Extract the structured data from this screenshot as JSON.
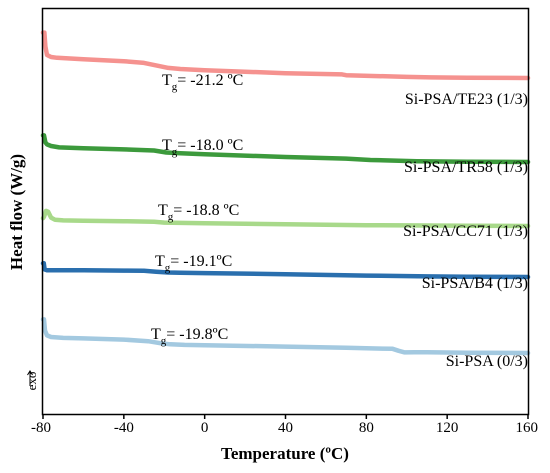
{
  "chart_data": {
    "type": "line",
    "xlabel": "Temperature (ºC)",
    "ylabel": "Heat flow (W/g)",
    "exo_label": "exo",
    "xlim": [
      -80,
      160
    ],
    "xticks": [
      -80,
      -40,
      0,
      40,
      80,
      120,
      160
    ],
    "xtick_labels": [
      "-80",
      "-40",
      "0",
      "40",
      "80",
      "120",
      "160"
    ],
    "grid": false,
    "y_ticks_shown": false,
    "series": [
      {
        "name": "Si-PSA/TE23 (1/3)",
        "color": "#f5928f",
        "tg": {
          "prefix": "T",
          "sub": "g",
          "text": "= -21.2 ºC"
        },
        "points": [
          [
            -80,
            20
          ],
          [
            -79.3,
            20
          ],
          [
            -78.8,
            15
          ],
          [
            -78,
            12
          ],
          [
            -76,
            11.3
          ],
          [
            -73,
            11
          ],
          [
            -60,
            10.5
          ],
          [
            -40,
            9.8
          ],
          [
            -30,
            9.2
          ],
          [
            -24,
            8.3
          ],
          [
            -18,
            7.4
          ],
          [
            -12,
            7.0
          ],
          [
            0,
            6.6
          ],
          [
            40,
            5.5
          ],
          [
            68,
            5.1
          ],
          [
            70,
            4.8
          ],
          [
            100,
            4.2
          ],
          [
            112,
            4.0
          ],
          [
            130,
            3.9
          ],
          [
            160,
            3.8
          ]
        ]
      },
      {
        "name": "Si-PSA/TR58 (1/3)",
        "color": "#3c9a3c",
        "tg": {
          "prefix": "T",
          "sub": "g",
          "text": "= -18.0 ºC"
        },
        "points": [
          [
            -80,
            18
          ],
          [
            -79.5,
            18
          ],
          [
            -78.8,
            15.5
          ],
          [
            -78,
            14.8
          ],
          [
            -76,
            14.2
          ],
          [
            -72,
            13.7
          ],
          [
            -60,
            13.4
          ],
          [
            -40,
            13.0
          ],
          [
            -25,
            12.6
          ],
          [
            -19,
            11.9
          ],
          [
            -12,
            11.6
          ],
          [
            0,
            11.3
          ],
          [
            40,
            10.3
          ],
          [
            70,
            9.7
          ],
          [
            82,
            9.2
          ],
          [
            105,
            8.8
          ],
          [
            130,
            8.6
          ],
          [
            160,
            8.5
          ]
        ]
      },
      {
        "name": "Si-PSA/CC71 (1/3)",
        "color": "#a8d98a",
        "tg": {
          "prefix": "T",
          "sub": "g",
          "text": "= -18.8 ºC"
        },
        "points": [
          [
            -80,
            20
          ],
          [
            -79.5,
            20.5
          ],
          [
            -78.5,
            22.6
          ],
          [
            -77.5,
            22.3
          ],
          [
            -76,
            20.2
          ],
          [
            -74,
            19.4
          ],
          [
            -70,
            19.2
          ],
          [
            -60,
            19.1
          ],
          [
            -40,
            18.9
          ],
          [
            -25,
            18.7
          ],
          [
            -20,
            18.4
          ],
          [
            -12,
            18.3
          ],
          [
            0,
            18.2
          ],
          [
            40,
            17.8
          ],
          [
            80,
            17.5
          ],
          [
            100,
            17.4
          ],
          [
            130,
            17.3
          ],
          [
            160,
            17.2
          ]
        ]
      },
      {
        "name": "Si-PSA/B4 (1/3)",
        "color": "#2a6fae",
        "tg": {
          "prefix": "T",
          "sub": "g",
          "text": "= -19.1ºC"
        },
        "points": [
          [
            -80,
            22
          ],
          [
            -79.6,
            22
          ],
          [
            -79.2,
            19.8
          ],
          [
            -78,
            19.5
          ],
          [
            -60,
            19.5
          ],
          [
            -40,
            19.4
          ],
          [
            -30,
            19.3
          ],
          [
            -24,
            19.0
          ],
          [
            -18,
            18.7
          ],
          [
            -12,
            18.6
          ],
          [
            0,
            18.5
          ],
          [
            40,
            18.1
          ],
          [
            80,
            17.6
          ],
          [
            110,
            17.3
          ],
          [
            130,
            17.2
          ],
          [
            160,
            17.1
          ]
        ]
      },
      {
        "name": "Si-PSA (0/3)",
        "color": "#a3c9e0",
        "tg": {
          "prefix": "T",
          "sub": "g",
          "text": "= -19.8ºC"
        },
        "points": [
          [
            -80,
            26
          ],
          [
            -79.5,
            26
          ],
          [
            -79,
            22
          ],
          [
            -78,
            20.3
          ],
          [
            -76,
            19.7
          ],
          [
            -70,
            19.4
          ],
          [
            -60,
            19.2
          ],
          [
            -40,
            18.8
          ],
          [
            -28,
            18.2
          ],
          [
            -22,
            17.5
          ],
          [
            -17,
            17.1
          ],
          [
            -10,
            16.9
          ],
          [
            0,
            16.8
          ],
          [
            40,
            16.3
          ],
          [
            70,
            15.9
          ],
          [
            85,
            15.6
          ],
          [
            93,
            15.5
          ],
          [
            96,
            14.8
          ],
          [
            99,
            14.2
          ],
          [
            104,
            14.3
          ],
          [
            110,
            14.3
          ],
          [
            130,
            14.1
          ],
          [
            160,
            14.0
          ]
        ]
      }
    ]
  }
}
